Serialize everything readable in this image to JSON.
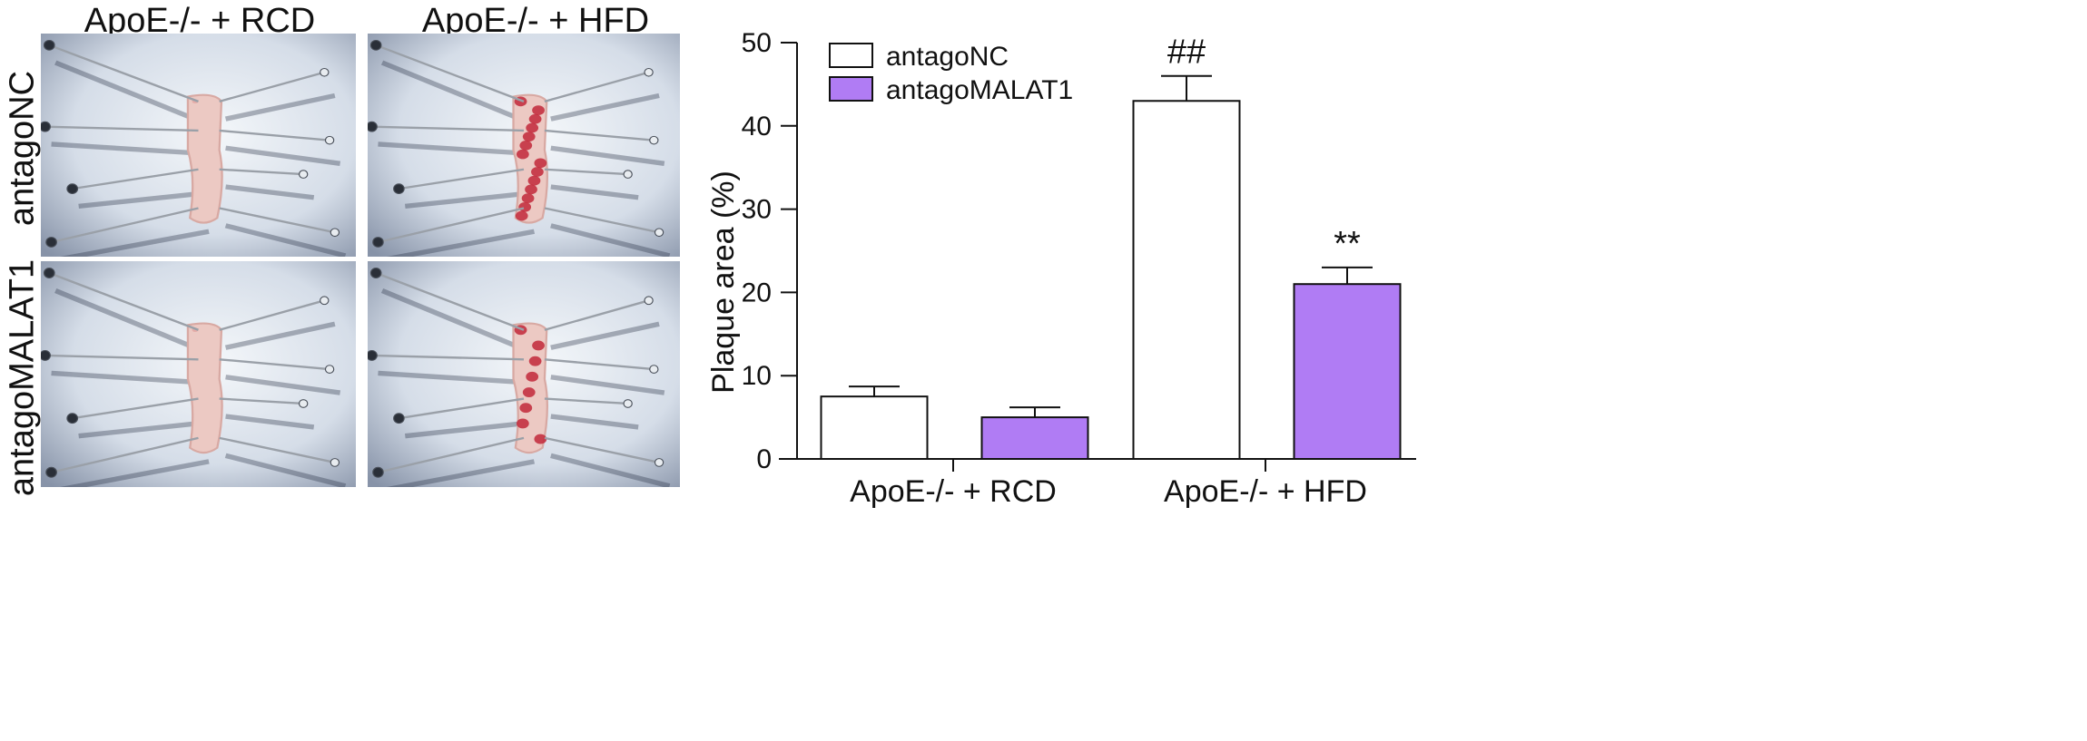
{
  "photo_grid": {
    "columns": [
      "ApoE-/- + RCD",
      "ApoE-/- + HFD"
    ],
    "rows": [
      "antagoNC",
      "antagoMALAT1"
    ],
    "panels": [
      {
        "row": "antagoNC",
        "column": "ApoE-/- + RCD",
        "lesion": "low"
      },
      {
        "row": "antagoNC",
        "column": "ApoE-/- + HFD",
        "lesion": "high"
      },
      {
        "row": "antagoMALAT1",
        "column": "ApoE-/- + RCD",
        "lesion": "low"
      },
      {
        "row": "antagoMALAT1",
        "column": "ApoE-/- + HFD",
        "lesion": "medium"
      }
    ]
  },
  "chart_data": {
    "type": "bar",
    "categories": [
      "ApoE-/- + RCD",
      "ApoE-/- + HFD"
    ],
    "series": [
      {
        "name": "antagoNC",
        "values": [
          7.5,
          43
        ],
        "errors": [
          1.2,
          3
        ],
        "color": "#ffffff"
      },
      {
        "name": "antagoMALAT1",
        "values": [
          5,
          21
        ],
        "errors": [
          1.2,
          2
        ],
        "color": "#b07cf4"
      }
    ],
    "annotations": [
      {
        "series": "antagoNC",
        "category": "ApoE-/- + HFD",
        "text": "##"
      },
      {
        "series": "antagoMALAT1",
        "category": "ApoE-/- + HFD",
        "text": "**"
      }
    ],
    "title": "",
    "xlabel": "",
    "ylabel": "Plaque area (%)",
    "ylim": [
      0,
      50
    ],
    "yticks": [
      0,
      10,
      20,
      30,
      40,
      50
    ],
    "grid": false,
    "legend_position": "top-left"
  }
}
